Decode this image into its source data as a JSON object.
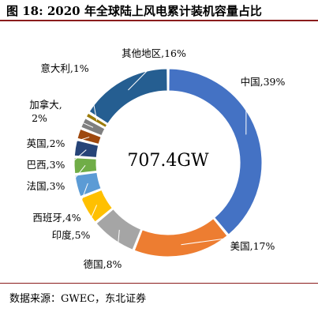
{
  "title": "图 18:  2020 年全球陆上风电累计装机容量占比",
  "source": "数据来源：GWEC，东北证券",
  "chart_data": {
    "type": "pie",
    "variant": "donut",
    "center_label": "707.4GW",
    "slices": [
      {
        "label": "中国,39%",
        "value": 39,
        "color": "#4472C4"
      },
      {
        "label": "美国,17%",
        "value": 17,
        "color": "#ED7D31"
      },
      {
        "label": "德国,8%",
        "value": 8,
        "color": "#A5A5A5"
      },
      {
        "label": "印度,5%",
        "value": 5,
        "color": "#FFC000"
      },
      {
        "label": "西班牙,4%",
        "value": 4,
        "color": "#5B9BD5"
      },
      {
        "label": "法国,3%",
        "value": 3,
        "color": "#70AD47"
      },
      {
        "label": "巴西,3%",
        "value": 3,
        "color": "#264478"
      },
      {
        "label": "英国,2%",
        "value": 2,
        "color": "#9E480E"
      },
      {
        "label": "加拿大,2%",
        "value": 2,
        "color": "#7F7F7F"
      },
      {
        "label": "意大利,1%",
        "value": 1,
        "color": "#9B7B0A"
      },
      {
        "label": "其他地区,16%",
        "value": 16,
        "color": "#255E91"
      }
    ]
  }
}
